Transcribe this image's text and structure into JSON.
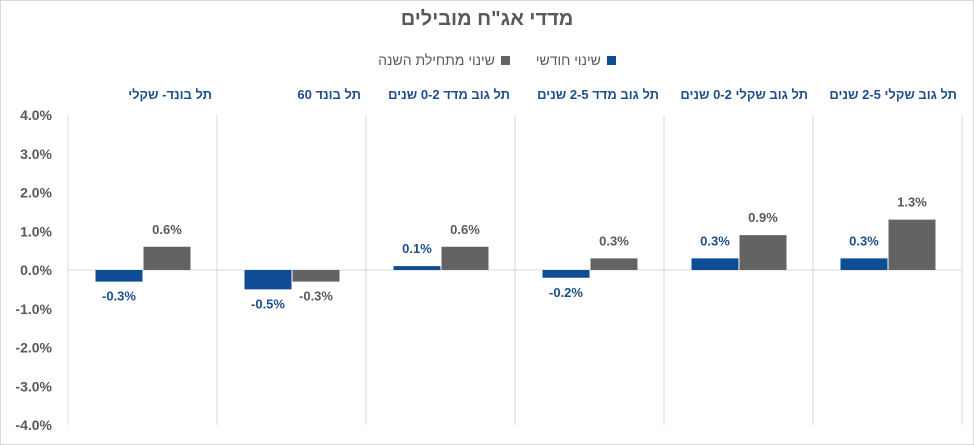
{
  "chart_data": {
    "type": "bar",
    "title": "מדדי אג\"ח מובילים",
    "categories": [
      "תל גוב שקלי 2-5 שנים",
      "תל גוב שקלי 0-2 שנים",
      "תל גוב מדד 2-5 שנים",
      "תל גוב מדד 0-2 שנים",
      "תל בונד 60",
      "תל בונד- שקלי"
    ],
    "series": [
      {
        "name": "שינוי חודשי",
        "color": "#0f4c96",
        "label_color": "#1f4e8c",
        "values": [
          0.3,
          0.3,
          -0.2,
          0.1,
          -0.5,
          -0.3
        ],
        "labels": [
          "0.3%",
          "0.3%",
          "-0.2%",
          "0.1%",
          "-0.5%",
          "-0.3%"
        ]
      },
      {
        "name": "שינוי מתחילת השנה",
        "color": "#636363",
        "label_color": "#595959",
        "values": [
          1.3,
          0.9,
          0.3,
          0.6,
          -0.3,
          0.6
        ],
        "labels": [
          "1.3%",
          "0.9%",
          "0.3%",
          "0.6%",
          "-0.3%",
          "0.6%"
        ]
      }
    ],
    "ylim": [
      -4.0,
      4.0
    ],
    "yticks": [
      4.0,
      3.0,
      2.0,
      1.0,
      0.0,
      -1.0,
      -2.0,
      -3.0,
      -4.0
    ],
    "ytick_labels": [
      "4.0%",
      "3.0%",
      "2.0%",
      "1.0%",
      "0.0%",
      "-1.0%",
      "-2.0%",
      "-3.0%",
      "-4.0%"
    ],
    "xlabel": "",
    "ylabel": "",
    "legend_position": "top-center",
    "direction": "rtl",
    "grid": false,
    "category_separators": true
  }
}
